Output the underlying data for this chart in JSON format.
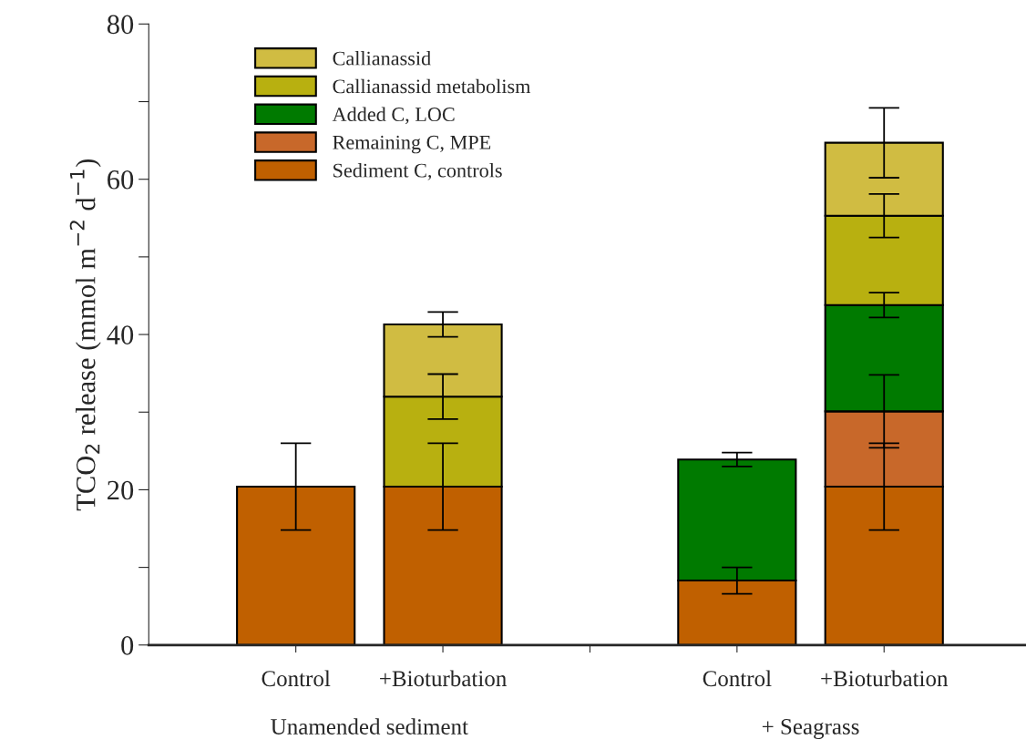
{
  "chart_data": {
    "type": "bar",
    "stacked": true,
    "ylabel": "TCO$_{2}$ release (mmol m$^{−2}$ d$^{−1}$)",
    "categories": [
      "Control",
      "+Bioturbation",
      null,
      "Control",
      "+Bioturbation"
    ],
    "series": [
      {
        "name": "Sediment C, controls",
        "color": "#c06000",
        "values": [
          20.4,
          20.4,
          null,
          8.3,
          20.4
        ],
        "errors": [
          5.6,
          5.6,
          null,
          1.7,
          5.6
        ]
      },
      {
        "name": "Remaining C, MPE",
        "color": "#c8682a",
        "values": [
          null,
          null,
          null,
          null,
          9.7
        ],
        "errors": [
          null,
          null,
          null,
          null,
          4.7
        ]
      },
      {
        "name": "Added C, LOC",
        "color": "#007a00",
        "values": [
          null,
          null,
          null,
          15.6,
          13.7
        ],
        "errors": [
          null,
          null,
          null,
          0.9,
          1.6
        ]
      },
      {
        "name": "Callianassid metabolism",
        "color": "#b8b010",
        "values": [
          null,
          11.6,
          null,
          null,
          11.5
        ],
        "errors": [
          null,
          2.9,
          null,
          null,
          2.8
        ]
      },
      {
        "name": "Callianassid",
        "color": "#d0bc42",
        "values": [
          null,
          9.3,
          null,
          null,
          9.4
        ],
        "errors": [
          null,
          1.6,
          null,
          null,
          4.5
        ]
      }
    ],
    "ylim": [
      0,
      80
    ],
    "yticks": [
      0,
      {
        "value": 10,
        "label": null
      },
      20,
      {
        "value": 30,
        "label": null
      },
      40,
      {
        "value": 50,
        "label": null
      },
      60,
      {
        "value": 70,
        "label": null
      },
      80
    ],
    "annotations": [
      "Unamended sediment",
      "+ Seagrass"
    ],
    "legend": "top left",
    "grid": false
  }
}
